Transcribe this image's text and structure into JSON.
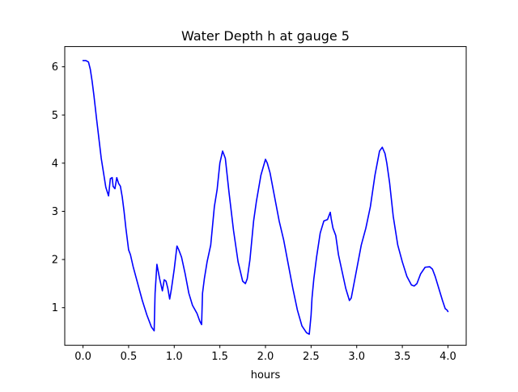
{
  "chart_data": {
    "type": "line",
    "title": "Water Depth h at gauge 5",
    "xlabel": "hours",
    "ylabel": "",
    "xlim": [
      -0.2,
      4.2
    ],
    "ylim": [
      0.22,
      6.42
    ],
    "xticks": [
      0.0,
      0.5,
      1.0,
      1.5,
      2.0,
      2.5,
      3.0,
      3.5,
      4.0
    ],
    "xtick_labels": [
      "0.0",
      "0.5",
      "1.0",
      "1.5",
      "2.0",
      "2.5",
      "3.0",
      "3.5",
      "4.0"
    ],
    "yticks": [
      1,
      2,
      3,
      4,
      5,
      6
    ],
    "ytick_labels": [
      "1",
      "2",
      "3",
      "4",
      "5",
      "6"
    ],
    "grid": false,
    "legend": "none",
    "series": [
      {
        "color": "#0000ff",
        "x": [
          0.0,
          0.03,
          0.06,
          0.08,
          0.1,
          0.12,
          0.15,
          0.2,
          0.25,
          0.28,
          0.3,
          0.32,
          0.33,
          0.35,
          0.37,
          0.39,
          0.41,
          0.43,
          0.45,
          0.47,
          0.5,
          0.52,
          0.55,
          0.6,
          0.65,
          0.7,
          0.75,
          0.78,
          0.79,
          0.81,
          0.84,
          0.87,
          0.89,
          0.91,
          0.93,
          0.95,
          0.97,
          1.0,
          1.03,
          1.05,
          1.08,
          1.12,
          1.16,
          1.2,
          1.25,
          1.28,
          1.3,
          1.31,
          1.33,
          1.36,
          1.4,
          1.44,
          1.47,
          1.5,
          1.53,
          1.56,
          1.6,
          1.65,
          1.7,
          1.75,
          1.78,
          1.8,
          1.83,
          1.87,
          1.9,
          1.95,
          2.0,
          2.02,
          2.05,
          2.1,
          2.15,
          2.2,
          2.25,
          2.3,
          2.35,
          2.4,
          2.45,
          2.48,
          2.5,
          2.51,
          2.53,
          2.56,
          2.6,
          2.64,
          2.68,
          2.71,
          2.72,
          2.74,
          2.77,
          2.8,
          2.84,
          2.88,
          2.92,
          2.94,
          2.97,
          3.0,
          3.05,
          3.1,
          3.15,
          3.2,
          3.25,
          3.28,
          3.31,
          3.33,
          3.36,
          3.4,
          3.45,
          3.5,
          3.55,
          3.6,
          3.63,
          3.66,
          3.7,
          3.75,
          3.8,
          3.83,
          3.86,
          3.9,
          3.94,
          3.97,
          3.99,
          4.0
        ],
        "y": [
          6.13,
          6.13,
          6.1,
          5.95,
          5.7,
          5.4,
          4.9,
          4.1,
          3.5,
          3.32,
          3.68,
          3.7,
          3.52,
          3.47,
          3.7,
          3.58,
          3.52,
          3.3,
          3.0,
          2.65,
          2.2,
          2.1,
          1.85,
          1.5,
          1.15,
          0.85,
          0.6,
          0.52,
          1.3,
          1.9,
          1.6,
          1.35,
          1.58,
          1.55,
          1.4,
          1.18,
          1.4,
          1.8,
          2.28,
          2.2,
          2.05,
          1.7,
          1.3,
          1.05,
          0.88,
          0.72,
          0.65,
          1.3,
          1.6,
          1.95,
          2.3,
          3.1,
          3.45,
          4.0,
          4.25,
          4.1,
          3.4,
          2.6,
          1.95,
          1.55,
          1.5,
          1.6,
          2.0,
          2.8,
          3.2,
          3.75,
          4.08,
          4.0,
          3.8,
          3.3,
          2.8,
          2.4,
          1.9,
          1.4,
          0.95,
          0.62,
          0.48,
          0.45,
          0.85,
          1.2,
          1.6,
          2.05,
          2.55,
          2.8,
          2.83,
          2.98,
          2.85,
          2.65,
          2.5,
          2.1,
          1.75,
          1.4,
          1.15,
          1.2,
          1.5,
          1.8,
          2.3,
          2.65,
          3.1,
          3.75,
          4.25,
          4.33,
          4.2,
          4.0,
          3.6,
          2.9,
          2.3,
          1.95,
          1.65,
          1.47,
          1.45,
          1.5,
          1.7,
          1.84,
          1.85,
          1.8,
          1.65,
          1.4,
          1.15,
          0.98,
          0.95,
          0.92
        ]
      }
    ]
  }
}
